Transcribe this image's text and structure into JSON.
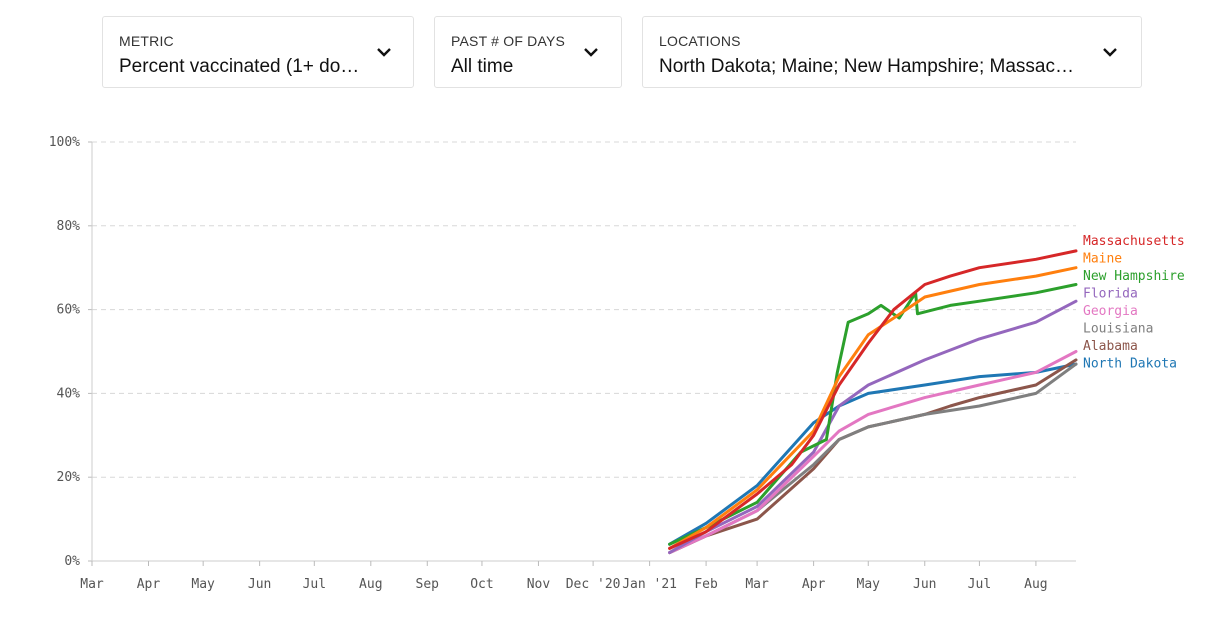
{
  "controls": {
    "metric": {
      "label": "METRIC",
      "value": "Percent vaccinated (1+ do…"
    },
    "days": {
      "label": "PAST # OF DAYS",
      "value": "All time"
    },
    "locations": {
      "label": "LOCATIONS",
      "value": "North Dakota; Maine; New Hampshire; Massac…"
    },
    "chevron_icon": "chevron-down-icon"
  },
  "colors": {
    "Massachusetts": "#d62728",
    "Maine": "#ff7f0e",
    "New Hampshire": "#2ca02c",
    "Florida": "#9467bd",
    "Georgia": "#e377c2",
    "Louisiana": "#7f7f7f",
    "Alabama": "#8c564b",
    "North Dakota": "#1f77b4"
  },
  "chart_data": {
    "type": "line",
    "title": "",
    "xlabel": "",
    "ylabel": "",
    "ylim": [
      0,
      100
    ],
    "y_ticks": [
      "0%",
      "20%",
      "40%",
      "60%",
      "80%",
      "100%"
    ],
    "x_ticks": [
      "Mar",
      "Apr",
      "May",
      "Jun",
      "Jul",
      "Aug",
      "Sep",
      "Oct",
      "Nov",
      "Dec '20",
      "Jan '21",
      "Feb",
      "Mar",
      "Apr",
      "May",
      "Jun",
      "Jul",
      "Aug"
    ],
    "x_tick_dates": [
      "2020-03-01",
      "2020-04-01",
      "2020-05-01",
      "2020-06-01",
      "2020-07-01",
      "2020-08-01",
      "2020-09-01",
      "2020-10-01",
      "2020-11-01",
      "2020-12-01",
      "2021-01-01",
      "2021-02-01",
      "2021-03-01",
      "2021-04-01",
      "2021-05-01",
      "2021-06-01",
      "2021-07-01",
      "2021-08-01"
    ],
    "xlim": [
      "2020-03-01",
      "2021-08-23"
    ],
    "grid": true,
    "legend": "right, end of lines",
    "series": [
      {
        "name": "Massachusetts",
        "x": [
          "2021-01-12",
          "2021-02-01",
          "2021-03-01",
          "2021-03-20",
          "2021-04-01",
          "2021-04-15",
          "2021-05-01",
          "2021-05-15",
          "2021-06-01",
          "2021-06-15",
          "2021-07-01",
          "2021-08-01",
          "2021-08-23"
        ],
        "y": [
          3,
          7,
          16,
          23,
          30,
          42,
          52,
          60,
          66,
          68,
          70,
          72,
          74
        ]
      },
      {
        "name": "Maine",
        "x": [
          "2021-01-12",
          "2021-02-01",
          "2021-03-01",
          "2021-04-01",
          "2021-04-15",
          "2021-05-01",
          "2021-05-15",
          "2021-06-01",
          "2021-07-01",
          "2021-08-01",
          "2021-08-23"
        ],
        "y": [
          3,
          8,
          17,
          31,
          44,
          54,
          58,
          63,
          66,
          68,
          70
        ]
      },
      {
        "name": "New Hampshire",
        "x": [
          "2021-01-12",
          "2021-02-01",
          "2021-03-01",
          "2021-03-25",
          "2021-04-08",
          "2021-04-14",
          "2021-04-20",
          "2021-05-01",
          "2021-05-08",
          "2021-05-18",
          "2021-05-27",
          "2021-05-28",
          "2021-06-15",
          "2021-07-01",
          "2021-08-01",
          "2021-08-23"
        ],
        "y": [
          4,
          8,
          14,
          26,
          29,
          45,
          57,
          59,
          61,
          58,
          64,
          59,
          61,
          62,
          64,
          66
        ]
      },
      {
        "name": "Florida",
        "x": [
          "2021-01-12",
          "2021-02-01",
          "2021-03-01",
          "2021-04-01",
          "2021-04-15",
          "2021-05-01",
          "2021-06-01",
          "2021-07-01",
          "2021-08-01",
          "2021-08-23"
        ],
        "y": [
          2,
          7,
          13,
          26,
          37,
          42,
          48,
          53,
          57,
          62
        ]
      },
      {
        "name": "Georgia",
        "x": [
          "2021-01-12",
          "2021-02-01",
          "2021-03-01",
          "2021-04-01",
          "2021-04-15",
          "2021-05-01",
          "2021-06-01",
          "2021-07-01",
          "2021-08-01",
          "2021-08-23"
        ],
        "y": [
          2,
          6,
          12,
          25,
          31,
          35,
          39,
          42,
          45,
          50
        ]
      },
      {
        "name": "Louisiana",
        "x": [
          "2021-01-12",
          "2021-02-01",
          "2021-03-01",
          "2021-04-01",
          "2021-04-15",
          "2021-05-01",
          "2021-06-01",
          "2021-07-01",
          "2021-08-01",
          "2021-08-23"
        ],
        "y": [
          2,
          6,
          12,
          23,
          29,
          32,
          35,
          37,
          40,
          47
        ]
      },
      {
        "name": "Alabama",
        "x": [
          "2021-01-12",
          "2021-02-01",
          "2021-03-01",
          "2021-04-01",
          "2021-04-15",
          "2021-05-01",
          "2021-06-01",
          "2021-06-15",
          "2021-07-01",
          "2021-08-01",
          "2021-08-23"
        ],
        "y": [
          2,
          6,
          10,
          22,
          29,
          32,
          35,
          37,
          39,
          42,
          48
        ]
      },
      {
        "name": "North Dakota",
        "x": [
          "2021-01-12",
          "2021-02-01",
          "2021-03-01",
          "2021-04-01",
          "2021-04-15",
          "2021-05-01",
          "2021-06-01",
          "2021-07-01",
          "2021-08-01",
          "2021-08-23"
        ],
        "y": [
          4,
          9,
          18,
          33,
          37,
          40,
          42,
          44,
          45,
          47
        ]
      }
    ]
  }
}
